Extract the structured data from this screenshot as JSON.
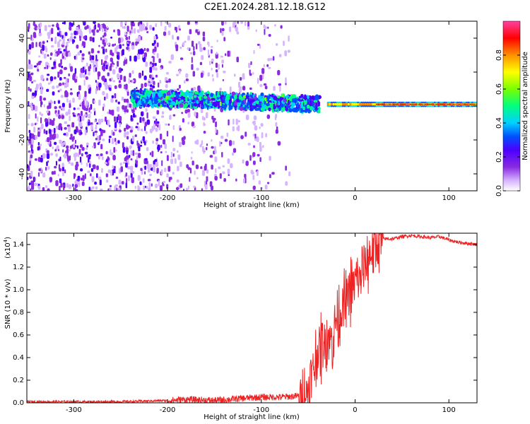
{
  "title": "C2E1.2024.281.12.18.G12",
  "colors": {
    "snr_line": "#ee2222",
    "colormap": [
      "#ffffff",
      "#d6b4ff",
      "#8a2be2",
      "#4b00ff",
      "#0050ff",
      "#00d0ff",
      "#00ff80",
      "#7aff00",
      "#ffff00",
      "#ff9000",
      "#ff0000",
      "#ff40a0"
    ]
  },
  "chart_data": [
    {
      "type": "heatmap",
      "xlabel": "Height of straight line (km)",
      "ylabel": "Frequency (Hz)",
      "xlim": [
        -350,
        130
      ],
      "ylim": [
        -50,
        50
      ],
      "xticks": [
        -300,
        -200,
        -100,
        0,
        100
      ],
      "yticks": [
        -40,
        -20,
        0,
        20,
        40
      ],
      "trend": "Broad noise below about -200 km; the signal concentrates between about -240 and -40 km at 0 to 8 Hz, then forms a narrow high-amplitude band at about 1 Hz above -30 km",
      "colorbar": {
        "label": "Normalized spectral amplitude",
        "range": [
          0,
          1
        ],
        "ticks": [
          0.0,
          0.2,
          0.4,
          0.6,
          0.8
        ]
      }
    },
    {
      "type": "line",
      "xlabel": "Height of straight line (km)",
      "ylabel": "SNR (10 * v/v)",
      "ylabel_scale": "(x10",
      "ylabel_scale_exp": "4",
      "ylabel_scale_close": ")",
      "xlim": [
        -350,
        130
      ],
      "ylim": [
        0,
        1.5
      ],
      "xticks": [
        -300,
        -200,
        -100,
        0,
        100
      ],
      "yticks": [
        0.0,
        0.2,
        0.4,
        0.6,
        0.8,
        1.0,
        1.2,
        1.4
      ],
      "series": [
        {
          "x": [
            -350,
            -300,
            -250,
            -200,
            -180,
            -150,
            -120,
            -100,
            -80,
            -60,
            -50,
            -45,
            -40,
            -35,
            -30,
            -25,
            -20,
            -15,
            -10,
            -5,
            0,
            5,
            10,
            15,
            20,
            25,
            30,
            40,
            50,
            60,
            70,
            80,
            90,
            100,
            110,
            120,
            130
          ],
          "values": [
            0.01,
            0.01,
            0.01,
            0.02,
            0.03,
            0.02,
            0.04,
            0.05,
            0.05,
            0.06,
            0.1,
            0.3,
            0.45,
            0.5,
            0.6,
            0.55,
            0.75,
            0.8,
            0.9,
            1.0,
            1.05,
            1.1,
            1.2,
            1.3,
            1.35,
            1.4,
            1.45,
            1.45,
            1.47,
            1.48,
            1.47,
            1.46,
            1.47,
            1.44,
            1.42,
            1.41,
            1.4
          ]
        }
      ]
    }
  ]
}
